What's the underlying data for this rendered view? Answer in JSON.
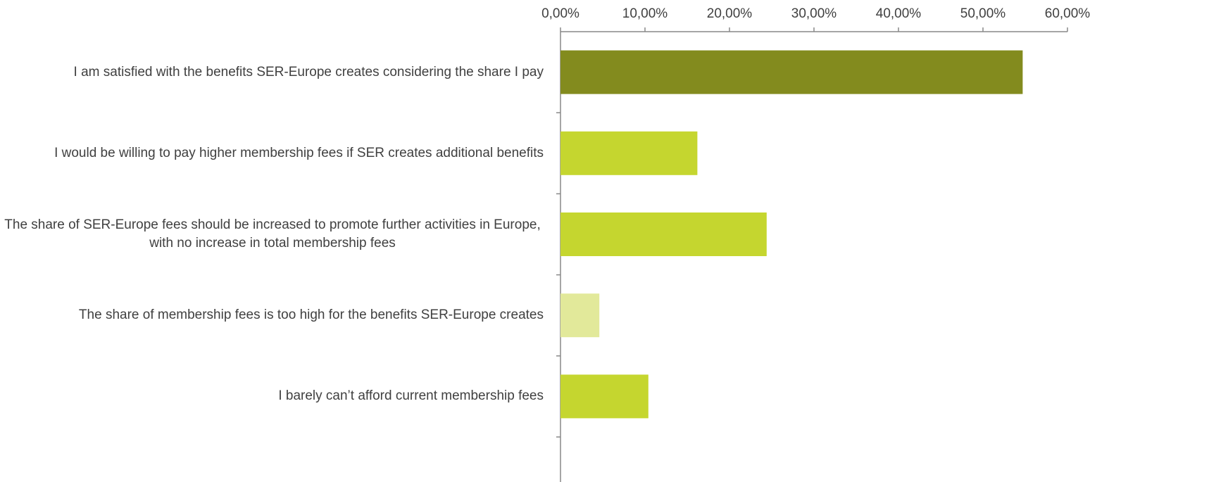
{
  "chart_data": {
    "type": "bar",
    "orientation": "horizontal",
    "categories": [
      "I am satisfied with the benefits SER-Europe creates considering the share I pay",
      "I would be willing to pay higher membership fees if SER creates additional benefits",
      "The share of SER-Europe fees should be increased to promote further activities in Europe, with no increase in total membership fees",
      "The share of membership fees is too high for the benefits SER-Europe creates",
      "I barely can’t afford current membership fees"
    ],
    "values": [
      54.7,
      16.2,
      24.4,
      4.6,
      10.4
    ],
    "colors": [
      "#838b1e",
      "#c5d62f",
      "#c5d62f",
      "#e2e99a",
      "#c5d62f"
    ],
    "xlim": [
      0,
      60
    ],
    "xticks": [
      {
        "value": 0,
        "label": "0,00%"
      },
      {
        "value": 10,
        "label": "10,00%"
      },
      {
        "value": 20,
        "label": "20,00%"
      },
      {
        "value": 30,
        "label": "30,00%"
      },
      {
        "value": 40,
        "label": "40,00%"
      },
      {
        "value": 50,
        "label": "50,00%"
      },
      {
        "value": 60,
        "label": "60,00%"
      }
    ],
    "grid": false
  }
}
